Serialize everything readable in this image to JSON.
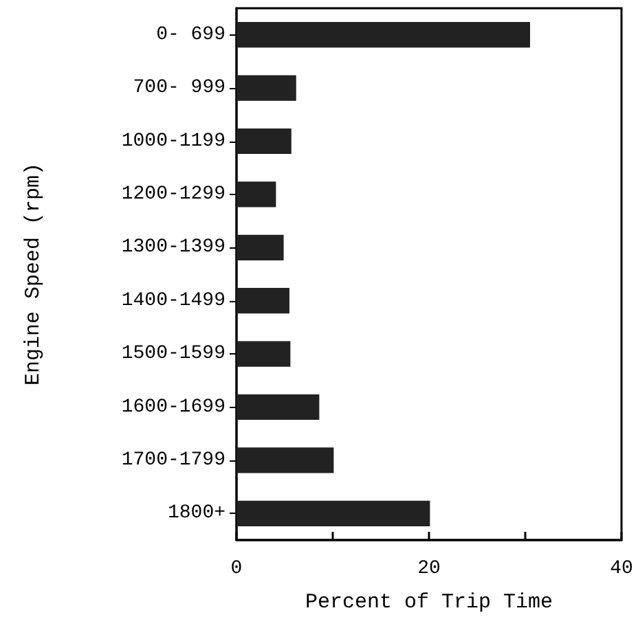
{
  "chart_data": {
    "type": "bar",
    "orientation": "horizontal",
    "xlabel": "Percent of Trip Time",
    "ylabel": "Engine Speed (rpm)",
    "categories": [
      "0- 699",
      "700- 999",
      "1000-1199",
      "1200-1299",
      "1300-1399",
      "1400-1499",
      "1500-1599",
      "1600-1699",
      "1700-1799",
      "1800+"
    ],
    "values": [
      30.5,
      6.2,
      5.7,
      4.1,
      4.9,
      5.5,
      5.6,
      8.6,
      10.1,
      20.1
    ],
    "color": "#222222",
    "xlim": [
      0,
      40
    ],
    "xticks": [
      0,
      {
        "value": 10,
        "label": null
      },
      20,
      {
        "value": 30,
        "label": null
      },
      40
    ],
    "grid": false
  }
}
